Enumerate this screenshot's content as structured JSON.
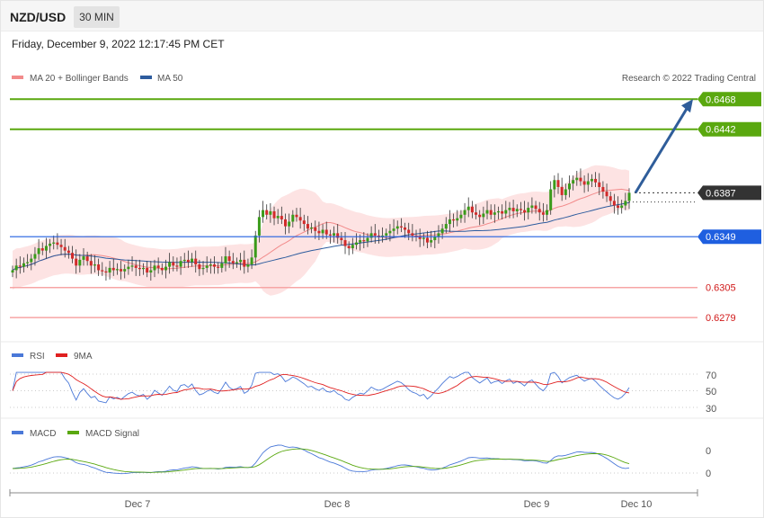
{
  "header": {
    "symbol": "NZD/USD",
    "timeframe": "30 MIN",
    "datetime": "Friday, December 9, 2022 12:17:45 PM CET"
  },
  "main_panel": {
    "legend": [
      {
        "label": "MA 20 + Bollinger Bands",
        "color": "#f28b8b"
      },
      {
        "label": "MA 50",
        "color": "#2e5c9e"
      }
    ],
    "credit": "Research © 2022 Trading Central"
  },
  "colors": {
    "bull": "#3a9b1a",
    "bear": "#d12a2a",
    "resistance": "#5aa80f",
    "current": "#333333",
    "pivot": "#1f5fe0",
    "support": "#f7a5a5",
    "support_text": "#d11a1a",
    "arrow": "#2f5d9a",
    "bollinger_fill": "#fde3e3",
    "ma20": "#f28b8b",
    "ma50": "#2e5c9e",
    "rsi": "#4a78d8",
    "rsi_ma": "#e02020",
    "macd": "#4a78d8",
    "macd_signal": "#5aa80f"
  },
  "chart_data": [
    {
      "type": "candlestick",
      "title": "NZD/USD 30 MIN",
      "y_range": [
        0.6262,
        0.6476
      ],
      "x_ticks": [
        "Dec 7",
        "Dec 8",
        "Dec 9",
        "Dec 10"
      ],
      "levels": [
        {
          "label": "0.6468",
          "value": 0.6468,
          "role": "resistance"
        },
        {
          "label": "0.6442",
          "value": 0.6442,
          "role": "resistance"
        },
        {
          "label": "0.6387",
          "value": 0.6387,
          "role": "current"
        },
        {
          "label": "0.6349",
          "value": 0.6349,
          "role": "pivot"
        },
        {
          "label": "0.6305",
          "value": 0.6305,
          "role": "support"
        },
        {
          "label": "0.6279",
          "value": 0.6279,
          "role": "support"
        }
      ],
      "forecast_arrow": {
        "from": 0.6387,
        "to": 0.6468
      },
      "closes": [
        0.632,
        0.6324,
        0.6323,
        0.6326,
        0.6327,
        0.633,
        0.6334,
        0.6339,
        0.6337,
        0.6341,
        0.6343,
        0.6344,
        0.6342,
        0.634,
        0.6337,
        0.6335,
        0.633,
        0.6324,
        0.6329,
        0.6332,
        0.6328,
        0.6324,
        0.6325,
        0.632,
        0.6319,
        0.6318,
        0.6322,
        0.632,
        0.6321,
        0.6319,
        0.6321,
        0.6323,
        0.6324,
        0.6322,
        0.6321,
        0.6322,
        0.6318,
        0.632,
        0.6324,
        0.6322,
        0.632,
        0.6323,
        0.6327,
        0.6324,
        0.6323,
        0.6328,
        0.6329,
        0.6327,
        0.633,
        0.6325,
        0.6321,
        0.6322,
        0.6324,
        0.6325,
        0.6323,
        0.6322,
        0.6326,
        0.6332,
        0.6328,
        0.6326,
        0.6327,
        0.6329,
        0.6323,
        0.6325,
        0.6331,
        0.635,
        0.6366,
        0.6372,
        0.6368,
        0.6371,
        0.6365,
        0.6367,
        0.6364,
        0.6358,
        0.6362,
        0.6368,
        0.6366,
        0.6363,
        0.636,
        0.6356,
        0.6357,
        0.6354,
        0.6352,
        0.6355,
        0.6351,
        0.635,
        0.6352,
        0.6348,
        0.6346,
        0.6341,
        0.6339,
        0.6342,
        0.6344,
        0.6346,
        0.6345,
        0.6348,
        0.6352,
        0.635,
        0.6349,
        0.635,
        0.6352,
        0.6354,
        0.6356,
        0.6358,
        0.6357,
        0.6355,
        0.6352,
        0.635,
        0.6349,
        0.6347,
        0.6348,
        0.6344,
        0.6346,
        0.6349,
        0.6352,
        0.6356,
        0.636,
        0.6364,
        0.6363,
        0.6365,
        0.6368,
        0.6372,
        0.6375,
        0.637,
        0.6368,
        0.6366,
        0.6369,
        0.6372,
        0.6368,
        0.637,
        0.6371,
        0.6369,
        0.6372,
        0.6374,
        0.6371,
        0.6373,
        0.6372,
        0.637,
        0.6374,
        0.6376,
        0.6373,
        0.637,
        0.6368,
        0.6372,
        0.639,
        0.6398,
        0.6392,
        0.6385,
        0.639,
        0.6395,
        0.6398,
        0.64,
        0.6397,
        0.6394,
        0.6397,
        0.6399,
        0.6396,
        0.6392,
        0.6388,
        0.6384,
        0.638,
        0.6376,
        0.6374,
        0.6376,
        0.638,
        0.6387
      ]
    },
    {
      "type": "line",
      "title": "RSI",
      "y_ticks": [
        "70",
        "50",
        "30"
      ],
      "series": [
        {
          "name": "RSI"
        },
        {
          "name": "9MA"
        }
      ]
    },
    {
      "type": "line",
      "title": "MACD",
      "y_ticks": [
        "0",
        "0"
      ],
      "series": [
        {
          "name": "MACD"
        },
        {
          "name": "MACD Signal"
        }
      ]
    }
  ]
}
